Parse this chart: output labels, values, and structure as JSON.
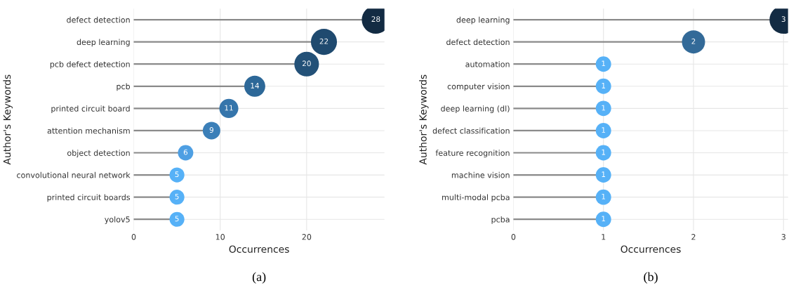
{
  "chart_data": [
    {
      "type": "lollipop",
      "xlabel": "Occurrences",
      "ylabel": "Author's Keywords",
      "orientation": "horizontal",
      "data_labels": true,
      "grid": true,
      "categories": [
        "defect detection",
        "deep learning",
        "pcb defect detection",
        "pcb",
        "printed circuit board",
        "attention mechanism",
        "object detection",
        "convolutional neural network",
        "printed circuit boards",
        "yolov5"
      ],
      "values": [
        28,
        22,
        20,
        14,
        11,
        9,
        6,
        5,
        5,
        5
      ],
      "sizes": [
        1,
        0.86,
        0.77,
        0.56,
        0.46,
        0.39,
        0.3,
        0.28,
        0.28,
        0.28
      ],
      "colors": [
        "#132b43",
        "#1f4a6f",
        "#235178",
        "#2d6898",
        "#3575ab",
        "#3b7fb8",
        "#4e9fe3",
        "#56b1f7",
        "#56b1f7",
        "#56b1f7"
      ],
      "xlim": [
        0,
        29
      ],
      "xticks": [
        0,
        10,
        20
      ],
      "annotations": [
        "(a)"
      ]
    },
    {
      "type": "lollipop",
      "xlabel": "Occurrences",
      "ylabel": "Author's Keywords",
      "orientation": "horizontal",
      "data_labels": true,
      "grid": true,
      "categories": [
        "deep learning",
        "defect detection",
        "automation",
        "computer vision",
        "deep learning (dl)",
        "defect classification",
        "feature recognition",
        "machine vision",
        "multi-modal pcba",
        "pcba"
      ],
      "values": [
        3,
        2,
        1,
        1,
        1,
        1,
        1,
        1,
        1,
        1
      ],
      "sizes": [
        1,
        0.68,
        0.3,
        0.3,
        0.3,
        0.3,
        0.3,
        0.3,
        0.3,
        0.3
      ],
      "colors": [
        "#132b43",
        "#336a98",
        "#56b1f7",
        "#56b1f7",
        "#56b1f7",
        "#56b1f7",
        "#56b1f7",
        "#56b1f7",
        "#56b1f7",
        "#56b1f7"
      ],
      "xlim": [
        0,
        3.05
      ],
      "xticks": [
        0,
        1,
        2,
        3
      ],
      "annotations": [
        "(b)"
      ]
    }
  ]
}
